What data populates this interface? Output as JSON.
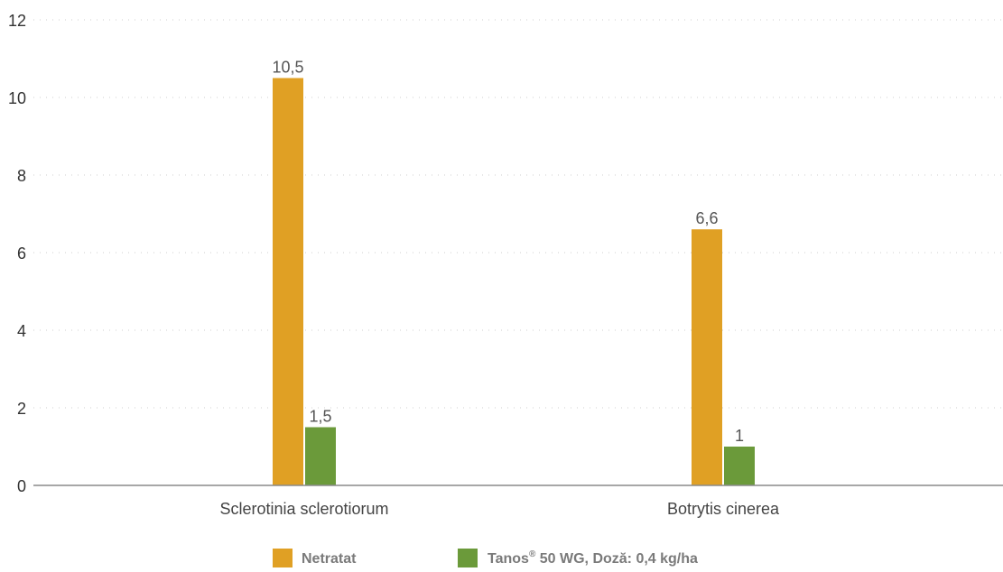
{
  "chart_data": {
    "type": "bar",
    "categories": [
      "Sclerotinia sclerotiorum",
      "Botrytis cinerea"
    ],
    "series": [
      {
        "name": "Netratat",
        "color": "#E0A024",
        "values": [
          10.5,
          6.6
        ],
        "labels": [
          "10,5",
          "6,6"
        ]
      },
      {
        "name": "Tanos® 50 WG, Doză: 0,4 kg/ha",
        "color": "#6B9A3A",
        "values": [
          1.5,
          1
        ],
        "labels": [
          "1,5",
          "1"
        ]
      }
    ],
    "ylim": [
      0,
      12
    ],
    "yticks": [
      "0",
      "2",
      "4",
      "6",
      "8",
      "10",
      "12"
    ],
    "ytick_values": [
      0,
      2,
      4,
      6,
      8,
      10,
      12
    ],
    "grid": true,
    "legend": {
      "position": "bottom",
      "items": [
        {
          "name": "Netratat",
          "color": "#E0A024"
        },
        {
          "main": "Tanos",
          "sup": "®",
          "rest": " 50 WG, Doză: 0,4 kg/ha",
          "color": "#6B9A3A"
        }
      ]
    }
  }
}
